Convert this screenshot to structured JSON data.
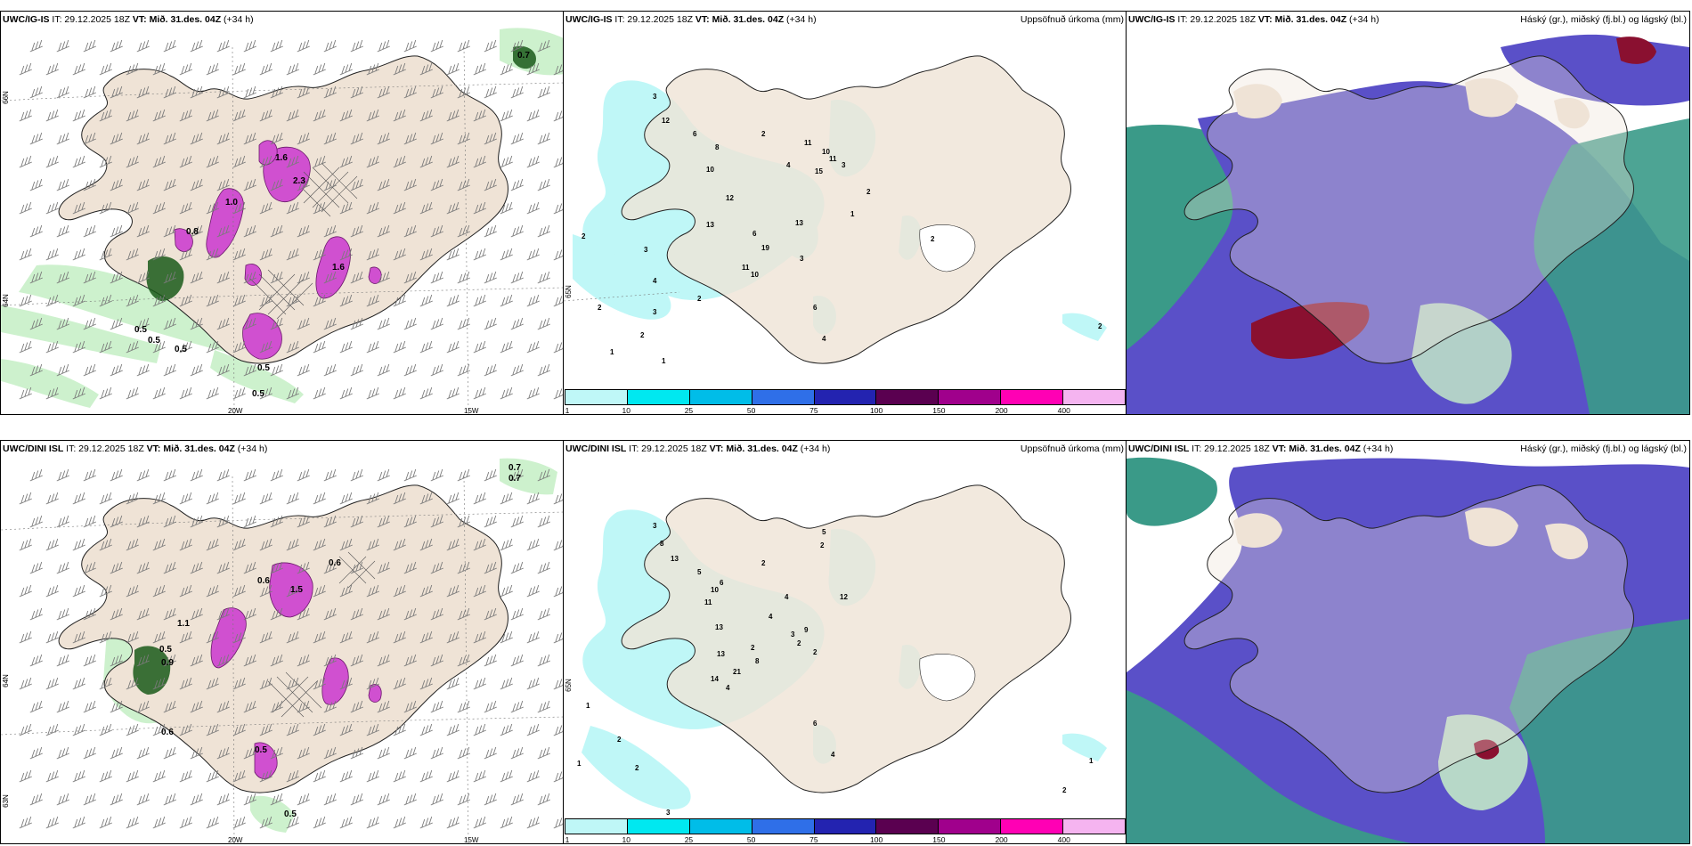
{
  "panels_top": {
    "left_header": {
      "model": "UWC/IG-IS",
      "it": " IT: 29.12.2025 18Z ",
      "vt": "VT: Mið. 31.des. 04Z",
      "lead": " (+34 h)"
    },
    "mid_header": {
      "model": "UWC/IG-IS",
      "it": " IT: 29.12.2025 18Z ",
      "vt": "VT: Mið. 31.des. 04Z",
      "lead": " (+34 h)",
      "right": "Uppsöfnuð úrkoma (mm)"
    },
    "right_header": {
      "model": "UWC/IG-IS",
      "it": " IT: 29.12.2025 18Z ",
      "vt": "VT: Mið. 31.des. 04Z",
      "lead": " (+34 h)",
      "right": "Háský (gr.), miðský (fj.bl.) og lágský (bl.)"
    }
  },
  "panels_bottom": {
    "left_header": {
      "model": "UWC/DINI ISL",
      "it": " IT: 29.12.2025 18Z ",
      "vt": "VT: Mið. 31.des. 04Z",
      "lead": " (+34 h)"
    },
    "mid_header": {
      "model": "UWC/DINI ISL",
      "it": " IT: 29.12.2025 18Z ",
      "vt": "VT: Mið. 31.des. 04Z",
      "lead": " (+34 h)",
      "right": "Uppsöfnuð úrkoma (mm)"
    },
    "right_header": {
      "model": "UWC/DINI ISL",
      "it": " IT: 29.12.2025 18Z ",
      "vt": "VT: Mið. 31.des. 04Z",
      "lead": " (+34 h)",
      "right": "Háský (gr.), miðský (fj.bl.) og lágský (bl.)"
    }
  },
  "grid_labels": {
    "lon_20w": "20W",
    "lon_15w": "15W",
    "lat_66n": "66N",
    "lat_65n": "65N",
    "lat_64n": "64N",
    "lat_63n": "63N"
  },
  "precip_colorbar": {
    "ticks": [
      "1",
      "10",
      "25",
      "50",
      "75",
      "100",
      "150",
      "200",
      "400"
    ],
    "colors": [
      "#bff7f7",
      "#00e8f0",
      "#00bde8",
      "#2f6fe8",
      "#2323b0",
      "#5a0050",
      "#a0008c",
      "#ff00b4",
      "#f5b4f0"
    ]
  },
  "top_left_values": [
    "0.7",
    "0.8",
    "1.0",
    "1.6",
    "2.3",
    "1.6",
    "0.5",
    "0.5",
    "0.5",
    "0.5",
    "0.5"
  ],
  "bottom_left_values": [
    "0.7",
    "0.7",
    "1.1",
    "0.5",
    "0.9",
    "0.6",
    "1.5",
    "0.6",
    "0.6",
    "0.5",
    "0.5"
  ],
  "top_mid_values": [
    "3",
    "12",
    "10",
    "6",
    "8",
    "2",
    "11",
    "10",
    "4",
    "11",
    "15",
    "3",
    "2",
    "1",
    "13",
    "6",
    "19",
    "13",
    "3",
    "11",
    "12",
    "10",
    "2",
    "3",
    "4",
    "2",
    "1",
    "1",
    "2",
    "3",
    "2",
    "6",
    "4",
    "2",
    "2"
  ],
  "bottom_mid_values": [
    "3",
    "8",
    "13",
    "5",
    "10",
    "11",
    "6",
    "2",
    "13",
    "5",
    "4",
    "2",
    "12",
    "3",
    "9",
    "2",
    "2",
    "4",
    "8",
    "21",
    "13",
    "2",
    "14",
    "4",
    "6",
    "1",
    "1",
    "2",
    "2",
    "3",
    "1",
    "2",
    "4",
    "1",
    "2"
  ],
  "colors": {
    "land": "#efe3d6",
    "wind": "#7a7a7a",
    "green_light": "#c8f0c8",
    "green_dark": "#1a5a1a",
    "magenta": "#d050d0",
    "cyan_light": "#bff7f7",
    "cloud_blue": "#5a50c8",
    "cloud_teal": "#3a9a88",
    "cloud_red": "#8a1030"
  }
}
